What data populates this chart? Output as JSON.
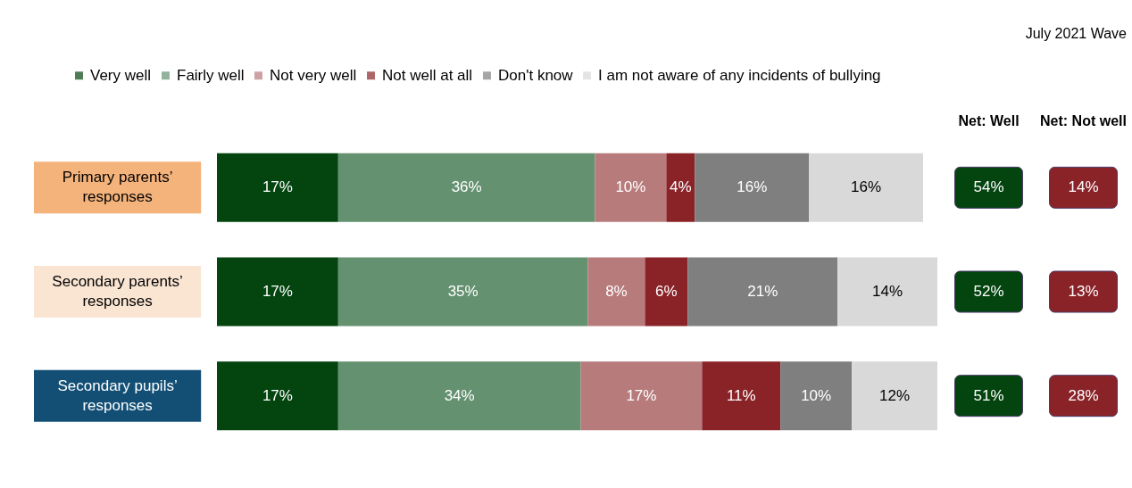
{
  "chart_data": {
    "type": "bar",
    "orientation": "horizontal",
    "stacked": true,
    "categories": [
      "Primary parents’ responses",
      "Secondary parents’ responses",
      "Secondary pupils’ responses"
    ],
    "series": [
      {
        "name": "Very well",
        "color": "#03440f",
        "values": [
          17,
          17,
          17
        ],
        "value_labels": [
          "17%",
          "17%",
          "17%"
        ]
      },
      {
        "name": "Fairly well",
        "color": "#649170",
        "values": [
          36,
          35,
          34
        ],
        "value_labels": [
          "36%",
          "35%",
          "34%"
        ]
      },
      {
        "name": "Not very well",
        "color": "#b77b7c",
        "values": [
          10,
          8,
          17
        ],
        "value_labels": [
          "10%",
          "8%",
          "17%"
        ]
      },
      {
        "name": "Not well at all",
        "color": "#8a2328",
        "values": [
          4,
          6,
          11
        ],
        "value_labels": [
          "4%",
          "6%",
          "11%"
        ]
      },
      {
        "name": "Don't know",
        "color": "#7f7f7f",
        "values": [
          16,
          21,
          10
        ],
        "value_labels": [
          "16%",
          "21%",
          "10%"
        ]
      },
      {
        "name": "I am not aware of any incidents of bullying",
        "color": "#d9d9d9",
        "values": [
          16,
          14,
          12
        ],
        "value_labels": [
          "16%",
          "14%",
          "12%"
        ]
      }
    ],
    "xlim": [
      0,
      101
    ],
    "tick_labels": "y",
    "legend": "top",
    "annotations": [
      "July 2021 Wave",
      "Net: Well",
      "Net: Not well",
      "54%",
      "52%",
      "51%",
      "14%",
      "13%",
      "28%"
    ]
  }
}
